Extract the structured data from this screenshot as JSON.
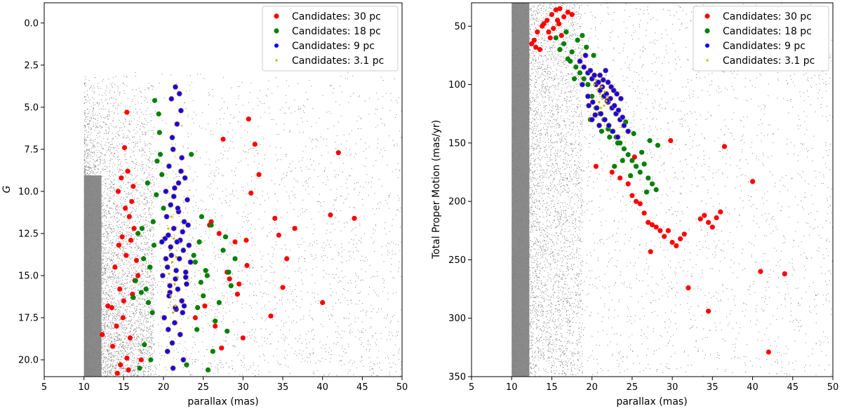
{
  "chart_data": [
    {
      "type": "scatter",
      "id": "left",
      "xlabel": "parallax (mas)",
      "ylabel": "G",
      "xlim": [
        5,
        50
      ],
      "ylim": [
        21,
        -1.2
      ],
      "xticks": [
        "5",
        "10",
        "15",
        "20",
        "25",
        "30",
        "35",
        "40",
        "45",
        "50"
      ],
      "yticks": [
        "0.0",
        "2.5",
        "5.0",
        "7.5",
        "10.0",
        "12.5",
        "15.0",
        "17.5",
        "20.0"
      ],
      "xtick_values": [
        5,
        10,
        15,
        20,
        25,
        30,
        35,
        40,
        45,
        50
      ],
      "ytick_values": [
        0,
        2.5,
        5,
        7.5,
        10,
        12.5,
        15,
        17.5,
        20
      ],
      "legend_position": "top-right",
      "background_field": {
        "color": "#808080",
        "x_range": [
          10,
          50
        ],
        "y_range": [
          2.8,
          21
        ],
        "dense_x_range": [
          10,
          14
        ]
      },
      "series": [
        {
          "name": "Candidates: 30 pc",
          "color": "#ff0000",
          "x": [
            12.3,
            13.0,
            13.6,
            14.1,
            14.5,
            15.0,
            15.3,
            15.7,
            16.0,
            14.8,
            13.9,
            14.3,
            15.5,
            16.2,
            15.1,
            14.6,
            15.9,
            16.4,
            14.2,
            14.9,
            15.4,
            15.6,
            16.1,
            14.4,
            13.5,
            15.2,
            16.6,
            15.8,
            14.7,
            16.3,
            15.4,
            16.8,
            17.2,
            24.0,
            25.2,
            26.0,
            26.5,
            27.0,
            27.5,
            28.0,
            28.3,
            29.0,
            29.5,
            30.0,
            30.4,
            30.7,
            31.0,
            31.5,
            32.0,
            33.5,
            34.0,
            34.5,
            35.0,
            35.5,
            36.5,
            40.0,
            41.0,
            42.0,
            44.0,
            30.5,
            29.3,
            25.8,
            27.3
          ],
          "y": [
            18.5,
            16.8,
            19.2,
            18.0,
            15.8,
            16.5,
            13.8,
            11.5,
            10.6,
            12.7,
            14.5,
            10.0,
            8.8,
            9.7,
            7.4,
            20.3,
            12.9,
            15.3,
            20.8,
            17.5,
            19.9,
            20.6,
            16.1,
            13.2,
            16.9,
            11.0,
            14.1,
            18.7,
            9.2,
            12.2,
            5.3,
            15.0,
            20.0,
            17.5,
            16.8,
            11.8,
            18.0,
            12.5,
            6.9,
            14.8,
            15.2,
            13.0,
            15.5,
            18.7,
            12.9,
            5.7,
            10.1,
            7.2,
            9.0,
            17.4,
            11.6,
            12.6,
            15.7,
            14.0,
            12.2,
            16.6,
            11.4,
            7.7,
            11.6,
            14.4,
            16.1,
            12.0,
            19.3
          ]
        },
        {
          "name": "Candidates: 18 pc",
          "color": "#008000",
          "x": [
            16.5,
            17.2,
            17.8,
            18.3,
            18.8,
            19.2,
            19.6,
            20.0,
            16.8,
            17.5,
            18.1,
            18.6,
            19.1,
            24.0,
            24.5,
            25.0,
            25.5,
            26.0,
            26.5,
            27.0,
            27.5,
            28.0,
            28.5,
            29.0,
            18.9,
            19.4,
            17.0,
            23.8,
            24.3,
            24.8,
            25.3,
            18.4,
            17.6,
            23.5,
            22.9,
            26.2,
            27.8,
            16.2,
            19.8,
            18.7,
            25.6,
            24.2,
            28.2,
            17.3,
            18.0,
            19.5,
            24.7
          ],
          "y": [
            15.3,
            16.0,
            15.8,
            14.5,
            13.2,
            8.2,
            7.8,
            11.0,
            12.5,
            14.0,
            16.6,
            17.2,
            10.2,
            14.2,
            13.0,
            16.2,
            15.0,
            12.0,
            17.7,
            16.6,
            13.5,
            18.3,
            15.6,
            14.0,
            4.6,
            5.4,
            20.5,
            13.8,
            16.9,
            11.5,
            14.7,
            20.0,
            19.1,
            7.8,
            20.3,
            19.5,
            12.7,
            16.3,
            9.0,
            11.8,
            20.6,
            18.2,
            14.8,
            12.2,
            9.5,
            6.5,
            15.4
          ]
        },
        {
          "name": "Candidates: 9 pc",
          "color": "#0000ff",
          "x": [
            20.5,
            21.0,
            21.5,
            22.0,
            22.5,
            20.2,
            20.8,
            21.3,
            21.8,
            22.3,
            22.8,
            23.2,
            19.8,
            20.4,
            20.9,
            21.4,
            21.9,
            22.4,
            22.9,
            23.4,
            20.1,
            20.6,
            21.1,
            21.6,
            22.1,
            22.6,
            23.1,
            19.9,
            20.3,
            20.7,
            21.2,
            21.7,
            22.2,
            22.7,
            23.0,
            21.0,
            21.5,
            22.0,
            20.5,
            22.5,
            21.2,
            21.8,
            20.9,
            22.3,
            21.6,
            20.7,
            22.1,
            21.4,
            21.9,
            20.3,
            22.6,
            21.1,
            20.8,
            21.7,
            22.4,
            21.3,
            20.6,
            22.8,
            21.5,
            22.2
          ],
          "y": [
            14.5,
            13.8,
            15.2,
            14.0,
            13.5,
            12.8,
            16.0,
            12.2,
            15.8,
            16.5,
            14.8,
            13.2,
            13.0,
            11.5,
            10.8,
            9.8,
            11.2,
            12.4,
            15.5,
            14.2,
            17.5,
            18.2,
            19.0,
            17.0,
            18.5,
            16.8,
            12.0,
            15.0,
            10.0,
            8.5,
            7.5,
            6.0,
            5.2,
            9.2,
            10.5,
            4.5,
            3.8,
            4.2,
            19.5,
            20.0,
            20.5,
            11.0,
            13.3,
            8.0,
            14.7,
            16.2,
            12.9,
            17.8,
            9.5,
            14.0,
            11.8,
            6.8,
            15.6,
            13.0,
            17.2,
            10.3,
            12.6,
            15.1,
            16.9,
            8.8
          ]
        },
        {
          "name": "Candidates: 3.1 pc",
          "color": "#bfbf00",
          "x": [
            20.8,
            21.1,
            21.4,
            20.9,
            21.6,
            21.3,
            21.0,
            21.2,
            20.7,
            21.5,
            21.8,
            20.6
          ],
          "y": [
            13.5,
            14.2,
            15.5,
            16.2,
            13.9,
            12.8,
            11.5,
            17.2,
            14.9,
            16.8,
            15.1,
            12.2
          ]
        }
      ]
    },
    {
      "type": "scatter",
      "id": "right",
      "xlabel": "parallax (mas)",
      "ylabel": "Total Proper Motion (mas/yr)",
      "xlim": [
        5,
        50
      ],
      "ylim": [
        350,
        30
      ],
      "xticks": [
        "5",
        "10",
        "15",
        "20",
        "25",
        "30",
        "35",
        "40",
        "45",
        "50"
      ],
      "yticks": [
        "50",
        "100",
        "150",
        "200",
        "250",
        "300",
        "350"
      ],
      "xtick_values": [
        5,
        10,
        15,
        20,
        25,
        30,
        35,
        40,
        45,
        50
      ],
      "ytick_values": [
        50,
        100,
        150,
        200,
        250,
        300,
        350
      ],
      "legend_position": "top-right",
      "background_field": {
        "color": "#808080",
        "x_range": [
          10,
          50
        ],
        "y_range": [
          30,
          350
        ],
        "dense_x_range": [
          10,
          14
        ]
      },
      "series": [
        {
          "name": "Candidates: 30 pc",
          "color": "#ff0000",
          "x": [
            12.5,
            13.2,
            13.8,
            14.4,
            15.0,
            15.5,
            16.0,
            16.5,
            17.0,
            14.0,
            15.2,
            13.5,
            16.2,
            14.8,
            15.7,
            12.8,
            13.0,
            15.9,
            14.6,
            17.5,
            20.5,
            22.5,
            23.5,
            24.5,
            25.0,
            25.5,
            26.0,
            26.5,
            27.0,
            27.5,
            28.0,
            28.5,
            29.0,
            29.5,
            30.0,
            30.5,
            31.0,
            31.5,
            32.0,
            33.5,
            34.0,
            34.5,
            35.0,
            35.5,
            36.0,
            36.5,
            40.0,
            41.0,
            42.0,
            44.0,
            34.5,
            27.3,
            29.8,
            25.3
          ],
          "y": [
            65.0,
            55.0,
            50.0,
            45.0,
            40.0,
            36.0,
            35.0,
            42.0,
            38.0,
            48.0,
            52.0,
            70.0,
            58.0,
            60.0,
            45.0,
            62.0,
            68.0,
            48.0,
            55.0,
            40.0,
            170.0,
            175.0,
            180.0,
            185.0,
            195.0,
            200.0,
            202.0,
            210.0,
            218.0,
            220.0,
            222.0,
            225.0,
            230.0,
            225.0,
            235.0,
            238.0,
            232.0,
            228.0,
            274.0,
            215.0,
            212.0,
            218.0,
            222.0,
            214.0,
            209.0,
            153.0,
            183.0,
            260.0,
            329.0,
            262.0,
            294.0,
            243.0,
            148.0,
            162.0
          ]
        },
        {
          "name": "Candidates: 18 pc",
          "color": "#008000",
          "x": [
            15.5,
            16.0,
            16.5,
            17.0,
            17.5,
            18.0,
            18.5,
            19.0,
            19.5,
            20.0,
            20.5,
            21.0,
            21.5,
            22.0,
            22.5,
            23.0,
            23.5,
            24.0,
            24.5,
            25.0,
            25.5,
            26.0,
            26.5,
            27.0,
            27.5,
            28.0,
            16.8,
            17.3,
            18.2,
            18.8,
            19.3,
            20.2,
            21.2,
            22.2,
            23.2,
            24.2,
            25.2,
            26.2,
            27.2,
            28.2,
            24.8,
            23.8,
            26.8,
            22.8,
            17.8,
            19.8
          ],
          "y": [
            60.0,
            70.0,
            65.0,
            78.0,
            72.0,
            85.0,
            90.0,
            95.0,
            100.0,
            110.0,
            120.0,
            125.0,
            130.0,
            138.0,
            140.0,
            145.0,
            150.0,
            155.0,
            160.0,
            165.0,
            170.0,
            175.0,
            168.0,
            180.0,
            185.0,
            190.0,
            55.0,
            80.0,
            62.0,
            58.0,
            68.0,
            75.0,
            140.0,
            145.0,
            150.0,
            132.0,
            142.0,
            158.0,
            148.0,
            152.0,
            178.0,
            165.0,
            192.0,
            170.0,
            95.0,
            130.0
          ]
        },
        {
          "name": "Candidates: 9 pc",
          "color": "#0000ff",
          "x": [
            18.5,
            19.0,
            19.5,
            20.0,
            20.5,
            21.0,
            21.5,
            22.0,
            22.5,
            23.0,
            23.5,
            24.0,
            24.5,
            19.2,
            19.8,
            20.3,
            20.8,
            21.3,
            21.8,
            22.3,
            22.8,
            23.3,
            23.8,
            18.8,
            19.5,
            20.1,
            20.6,
            21.1,
            21.6,
            22.1,
            22.6,
            23.1,
            23.6,
            20.0,
            21.0,
            22.0,
            19.6,
            22.4,
            21.7,
            20.9,
            23.2,
            21.4,
            22.7,
            20.4,
            21.9
          ],
          "y": [
            80.0,
            85.0,
            90.0,
            95.0,
            100.0,
            105.0,
            110.0,
            115.0,
            120.0,
            125.0,
            130.0,
            135.0,
            140.0,
            75.0,
            88.0,
            92.0,
            98.0,
            102.0,
            108.0,
            112.0,
            118.0,
            122.0,
            128.0,
            100.0,
            110.0,
            115.0,
            120.0,
            125.0,
            130.0,
            135.0,
            140.0,
            108.0,
            112.0,
            130.0,
            92.0,
            98.0,
            118.0,
            102.0,
            88.0,
            135.0,
            145.0,
            96.0,
            105.0,
            126.0,
            114.0
          ]
        },
        {
          "name": "Candidates: 3.1 pc",
          "color": "#bfbf00",
          "x": [
            20.3,
            20.7,
            21.0,
            21.3,
            21.6,
            21.9,
            20.9,
            21.2,
            21.5,
            20.5,
            21.8,
            21.1
          ],
          "y": [
            100.0,
            104.0,
            108.0,
            112.0,
            106.0,
            110.0,
            115.0,
            102.0,
            118.0,
            96.0,
            114.0,
            120.0
          ]
        }
      ]
    }
  ]
}
